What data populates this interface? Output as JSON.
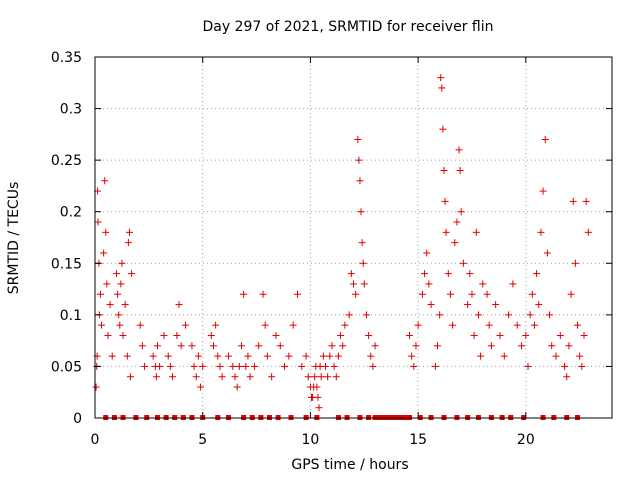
{
  "chart_data": {
    "type": "scatter",
    "title": "Day 297 of 2021, SRMTID for receiver flin",
    "xlabel": "GPS time / hours",
    "ylabel": "SRMTID / TECUs",
    "xlim": [
      0,
      24
    ],
    "ylim": [
      0,
      0.35
    ],
    "xticks": [
      "0",
      "5",
      "10",
      "15",
      "20"
    ],
    "xtick_values": [
      0,
      5,
      10,
      15,
      20
    ],
    "yticks": [
      "0",
      "0.05",
      "0.1",
      "0.15",
      "0.2",
      "0.25",
      "0.3",
      "0.35"
    ],
    "ytick_values": [
      0,
      0.05,
      0.1,
      0.15,
      0.2,
      0.25,
      0.3,
      0.35
    ],
    "grid": true,
    "marker": "plus",
    "color": "#e00000",
    "zero_row_hours": [
      0.5,
      0.9,
      1.3,
      1.9,
      2.4,
      2.9,
      3.3,
      3.7,
      4.1,
      4.5,
      5.0,
      5.7,
      6.2,
      6.9,
      7.3,
      7.7,
      8.1,
      8.5,
      9.1,
      9.8,
      10.3,
      11.3,
      11.7,
      12.3,
      12.7,
      13.0,
      13.2,
      13.4,
      13.6,
      13.8,
      14.0,
      14.2,
      14.4,
      14.6,
      15.1,
      15.6,
      16.2,
      16.8,
      17.3,
      17.8,
      18.4,
      18.9,
      19.3,
      19.9,
      20.8,
      21.3,
      21.9,
      22.4
    ],
    "points": [
      [
        0.05,
        0.03
      ],
      [
        0.08,
        0.05
      ],
      [
        0.1,
        0.06
      ],
      [
        0.12,
        0.22
      ],
      [
        0.14,
        0.19
      ],
      [
        0.18,
        0.15
      ],
      [
        0.2,
        0.1
      ],
      [
        0.25,
        0.12
      ],
      [
        0.3,
        0.09
      ],
      [
        0.4,
        0.16
      ],
      [
        0.45,
        0.23
      ],
      [
        0.5,
        0.18
      ],
      [
        0.55,
        0.13
      ],
      [
        0.6,
        0.08
      ],
      [
        0.7,
        0.11
      ],
      [
        0.8,
        0.06
      ],
      [
        1.0,
        0.14
      ],
      [
        1.05,
        0.12
      ],
      [
        1.1,
        0.1
      ],
      [
        1.15,
        0.09
      ],
      [
        1.2,
        0.13
      ],
      [
        1.25,
        0.15
      ],
      [
        1.3,
        0.08
      ],
      [
        1.4,
        0.11
      ],
      [
        1.5,
        0.06
      ],
      [
        1.55,
        0.17
      ],
      [
        1.6,
        0.18
      ],
      [
        1.65,
        0.04
      ],
      [
        1.7,
        0.14
      ],
      [
        2.1,
        0.09
      ],
      [
        2.2,
        0.07
      ],
      [
        2.3,
        0.05
      ],
      [
        2.7,
        0.06
      ],
      [
        2.8,
        0.05
      ],
      [
        2.85,
        0.04
      ],
      [
        2.9,
        0.07
      ],
      [
        3.0,
        0.05
      ],
      [
        3.2,
        0.08
      ],
      [
        3.4,
        0.06
      ],
      [
        3.5,
        0.05
      ],
      [
        3.6,
        0.04
      ],
      [
        3.8,
        0.08
      ],
      [
        3.9,
        0.11
      ],
      [
        4.0,
        0.07
      ],
      [
        4.2,
        0.09
      ],
      [
        4.5,
        0.07
      ],
      [
        4.6,
        0.05
      ],
      [
        4.7,
        0.04
      ],
      [
        4.8,
        0.06
      ],
      [
        4.9,
        0.03
      ],
      [
        5.0,
        0.05
      ],
      [
        5.4,
        0.08
      ],
      [
        5.5,
        0.07
      ],
      [
        5.6,
        0.09
      ],
      [
        5.7,
        0.06
      ],
      [
        5.8,
        0.05
      ],
      [
        5.9,
        0.04
      ],
      [
        6.2,
        0.06
      ],
      [
        6.4,
        0.05
      ],
      [
        6.5,
        0.04
      ],
      [
        6.6,
        0.03
      ],
      [
        6.7,
        0.05
      ],
      [
        6.8,
        0.07
      ],
      [
        6.9,
        0.12
      ],
      [
        7.0,
        0.05
      ],
      [
        7.1,
        0.06
      ],
      [
        7.2,
        0.04
      ],
      [
        7.4,
        0.05
      ],
      [
        7.6,
        0.07
      ],
      [
        7.8,
        0.12
      ],
      [
        7.9,
        0.09
      ],
      [
        8.0,
        0.06
      ],
      [
        8.2,
        0.04
      ],
      [
        8.4,
        0.08
      ],
      [
        8.6,
        0.07
      ],
      [
        8.8,
        0.05
      ],
      [
        9.0,
        0.06
      ],
      [
        9.2,
        0.09
      ],
      [
        9.4,
        0.12
      ],
      [
        9.6,
        0.05
      ],
      [
        9.8,
        0.06
      ],
      [
        9.9,
        0.04
      ],
      [
        10.0,
        0.03
      ],
      [
        10.05,
        0.02
      ],
      [
        10.1,
        0.02
      ],
      [
        10.15,
        0.03
      ],
      [
        10.2,
        0.04
      ],
      [
        10.25,
        0.05
      ],
      [
        10.3,
        0.03
      ],
      [
        10.35,
        0.02
      ],
      [
        10.4,
        0.01
      ],
      [
        10.45,
        0.05
      ],
      [
        10.5,
        0.04
      ],
      [
        10.6,
        0.06
      ],
      [
        10.7,
        0.05
      ],
      [
        10.8,
        0.04
      ],
      [
        10.9,
        0.06
      ],
      [
        11.0,
        0.07
      ],
      [
        11.1,
        0.05
      ],
      [
        11.2,
        0.04
      ],
      [
        11.3,
        0.06
      ],
      [
        11.4,
        0.08
      ],
      [
        11.5,
        0.07
      ],
      [
        11.6,
        0.09
      ],
      [
        11.8,
        0.1
      ],
      [
        11.9,
        0.14
      ],
      [
        12.0,
        0.13
      ],
      [
        12.1,
        0.12
      ],
      [
        12.2,
        0.27
      ],
      [
        12.25,
        0.25
      ],
      [
        12.3,
        0.23
      ],
      [
        12.35,
        0.2
      ],
      [
        12.4,
        0.17
      ],
      [
        12.45,
        0.15
      ],
      [
        12.5,
        0.13
      ],
      [
        12.6,
        0.1
      ],
      [
        12.7,
        0.08
      ],
      [
        12.8,
        0.06
      ],
      [
        12.9,
        0.05
      ],
      [
        13.0,
        0.07
      ],
      [
        14.6,
        0.08
      ],
      [
        14.7,
        0.06
      ],
      [
        14.8,
        0.05
      ],
      [
        14.9,
        0.07
      ],
      [
        15.0,
        0.09
      ],
      [
        15.2,
        0.12
      ],
      [
        15.3,
        0.14
      ],
      [
        15.4,
        0.16
      ],
      [
        15.5,
        0.13
      ],
      [
        15.6,
        0.11
      ],
      [
        15.8,
        0.05
      ],
      [
        15.9,
        0.07
      ],
      [
        16.0,
        0.1
      ],
      [
        16.05,
        0.33
      ],
      [
        16.1,
        0.32
      ],
      [
        16.15,
        0.28
      ],
      [
        16.2,
        0.24
      ],
      [
        16.25,
        0.21
      ],
      [
        16.3,
        0.18
      ],
      [
        16.4,
        0.14
      ],
      [
        16.5,
        0.12
      ],
      [
        16.6,
        0.09
      ],
      [
        16.7,
        0.17
      ],
      [
        16.8,
        0.19
      ],
      [
        16.9,
        0.26
      ],
      [
        16.95,
        0.24
      ],
      [
        17.0,
        0.2
      ],
      [
        17.1,
        0.15
      ],
      [
        17.3,
        0.11
      ],
      [
        17.4,
        0.14
      ],
      [
        17.5,
        0.12
      ],
      [
        17.6,
        0.08
      ],
      [
        17.7,
        0.18
      ],
      [
        17.8,
        0.1
      ],
      [
        17.9,
        0.06
      ],
      [
        18.0,
        0.13
      ],
      [
        18.2,
        0.12
      ],
      [
        18.3,
        0.09
      ],
      [
        18.4,
        0.07
      ],
      [
        18.6,
        0.11
      ],
      [
        18.8,
        0.08
      ],
      [
        19.0,
        0.06
      ],
      [
        19.2,
        0.1
      ],
      [
        19.4,
        0.13
      ],
      [
        19.6,
        0.09
      ],
      [
        19.8,
        0.07
      ],
      [
        20.0,
        0.08
      ],
      [
        20.1,
        0.05
      ],
      [
        20.2,
        0.1
      ],
      [
        20.3,
        0.12
      ],
      [
        20.4,
        0.09
      ],
      [
        20.5,
        0.14
      ],
      [
        20.6,
        0.11
      ],
      [
        20.7,
        0.18
      ],
      [
        20.8,
        0.22
      ],
      [
        20.9,
        0.27
      ],
      [
        21.0,
        0.16
      ],
      [
        21.1,
        0.1
      ],
      [
        21.2,
        0.07
      ],
      [
        21.4,
        0.06
      ],
      [
        21.6,
        0.08
      ],
      [
        21.8,
        0.05
      ],
      [
        21.9,
        0.04
      ],
      [
        22.0,
        0.07
      ],
      [
        22.1,
        0.12
      ],
      [
        22.2,
        0.21
      ],
      [
        22.3,
        0.15
      ],
      [
        22.4,
        0.09
      ],
      [
        22.5,
        0.06
      ],
      [
        22.6,
        0.05
      ],
      [
        22.7,
        0.08
      ],
      [
        22.8,
        0.21
      ],
      [
        22.9,
        0.18
      ]
    ]
  }
}
